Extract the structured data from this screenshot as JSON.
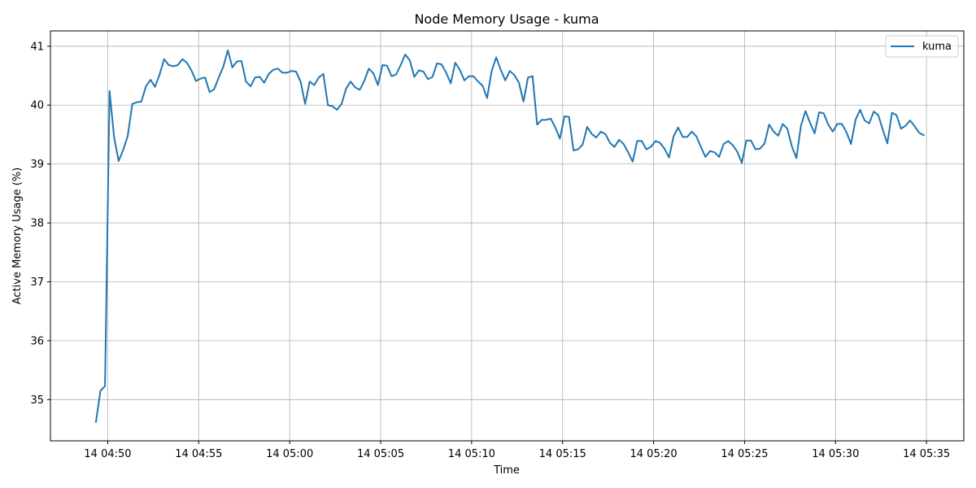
{
  "chart_data": {
    "type": "line",
    "title": "Node Memory Usage - kuma",
    "xlabel": "Time",
    "ylabel": "Active Memory Usage (%)",
    "x_tick_labels": [
      "14 04:50",
      "14 04:55",
      "14 05:00",
      "14 05:05",
      "14 05:10",
      "14 05:15",
      "14 05:20",
      "14 05:25",
      "14 05:30",
      "14 05:35"
    ],
    "x_tick_minutes": [
      50,
      55,
      60,
      65,
      70,
      75,
      80,
      85,
      90,
      95
    ],
    "y_ticks": [
      35,
      36,
      37,
      38,
      39,
      40,
      41
    ],
    "xlim": [
      46.85,
      97.05
    ],
    "ylim": [
      34.3,
      41.26
    ],
    "grid": true,
    "legend_position": "top-right",
    "series": [
      {
        "name": "kuma",
        "color": "#1f77b4",
        "x": [
          49.35,
          49.6,
          49.85,
          50.1,
          50.35,
          50.6,
          50.85,
          51.1,
          51.35,
          51.6,
          51.85,
          52.1,
          52.35,
          52.6,
          52.85,
          53.1,
          53.35,
          53.6,
          53.85,
          54.1,
          54.35,
          54.6,
          54.85,
          55.1,
          55.35,
          55.6,
          55.85,
          56.1,
          56.35,
          56.6,
          56.85,
          57.1,
          57.35,
          57.6,
          57.85,
          58.1,
          58.35,
          58.6,
          58.85,
          59.1,
          59.35,
          59.6,
          59.85,
          60.1,
          60.35,
          60.6,
          60.85,
          61.1,
          61.35,
          61.6,
          61.85,
          62.1,
          62.35,
          62.6,
          62.85,
          63.1,
          63.35,
          63.6,
          63.85,
          64.1,
          64.35,
          64.6,
          64.85,
          65.1,
          65.35,
          65.6,
          65.85,
          66.1,
          66.35,
          66.6,
          66.85,
          67.1,
          67.35,
          67.6,
          67.85,
          68.1,
          68.35,
          68.6,
          68.85,
          69.1,
          69.35,
          69.6,
          69.85,
          70.1,
          70.35,
          70.6,
          70.85,
          71.1,
          71.35,
          71.6,
          71.85,
          72.1,
          72.35,
          72.6,
          72.85,
          73.1,
          73.35,
          73.6,
          73.85,
          74.1,
          74.35,
          74.6,
          74.85,
          75.1,
          75.35,
          75.6,
          75.85,
          76.1,
          76.35,
          76.6,
          76.85,
          77.1,
          77.35,
          77.6,
          77.85,
          78.1,
          78.35,
          78.6,
          78.85,
          79.1,
          79.35,
          79.6,
          79.85,
          80.1,
          80.35,
          80.6,
          80.85,
          81.1,
          81.35,
          81.6,
          81.85,
          82.1,
          82.35,
          82.6,
          82.85,
          83.1,
          83.35,
          83.6,
          83.85,
          84.1,
          84.35,
          84.6,
          84.85,
          85.1,
          85.35,
          85.6,
          85.85,
          86.1,
          86.35,
          86.6,
          86.85,
          87.1,
          87.35,
          87.6,
          87.85,
          88.1,
          88.35,
          88.6,
          88.85,
          89.1,
          89.35,
          89.6,
          89.85,
          90.1,
          90.35,
          90.6,
          90.85,
          91.1,
          91.35,
          91.6,
          91.85,
          92.1,
          92.35,
          92.6,
          92.85,
          93.1,
          93.35,
          93.6,
          93.85,
          94.1,
          94.35,
          94.6,
          94.85
        ],
        "y": [
          34.62,
          35.15,
          35.23,
          40.24,
          39.45,
          39.05,
          39.24,
          39.48,
          40.02,
          40.05,
          40.06,
          40.32,
          40.43,
          40.31,
          40.52,
          40.78,
          40.68,
          40.66,
          40.68,
          40.78,
          40.72,
          40.59,
          40.41,
          40.45,
          40.47,
          40.22,
          40.27,
          40.47,
          40.65,
          40.93,
          40.64,
          40.74,
          40.75,
          40.4,
          40.32,
          40.47,
          40.48,
          40.38,
          40.53,
          40.6,
          40.62,
          40.55,
          40.55,
          40.58,
          40.57,
          40.4,
          40.02,
          40.4,
          40.34,
          40.47,
          40.53,
          40.0,
          39.98,
          39.92,
          40.02,
          40.28,
          40.4,
          40.3,
          40.26,
          40.41,
          40.62,
          40.54,
          40.34,
          40.68,
          40.67,
          40.49,
          40.52,
          40.68,
          40.86,
          40.76,
          40.48,
          40.59,
          40.57,
          40.44,
          40.48,
          40.71,
          40.69,
          40.55,
          40.37,
          40.72,
          40.6,
          40.42,
          40.49,
          40.49,
          40.4,
          40.33,
          40.12,
          40.58,
          40.81,
          40.6,
          40.42,
          40.58,
          40.51,
          40.38,
          40.06,
          40.47,
          40.49,
          39.67,
          39.75,
          39.75,
          39.77,
          39.62,
          39.43,
          39.81,
          39.8,
          39.23,
          39.25,
          39.33,
          39.63,
          39.51,
          39.45,
          39.55,
          39.51,
          39.36,
          39.29,
          39.41,
          39.34,
          39.2,
          39.04,
          39.39,
          39.39,
          39.25,
          39.29,
          39.39,
          39.36,
          39.26,
          39.11,
          39.47,
          39.62,
          39.46,
          39.46,
          39.55,
          39.47,
          39.29,
          39.12,
          39.22,
          39.2,
          39.12,
          39.34,
          39.39,
          39.32,
          39.21,
          39.02,
          39.4,
          39.4,
          39.25,
          39.26,
          39.35,
          39.67,
          39.55,
          39.48,
          39.68,
          39.6,
          39.3,
          39.1,
          39.65,
          39.9,
          39.7,
          39.52,
          39.88,
          39.86,
          39.67,
          39.55,
          39.68,
          39.68,
          39.54,
          39.34,
          39.75,
          39.92,
          39.74,
          39.69,
          39.89,
          39.83,
          39.58,
          39.35,
          39.87,
          39.83,
          39.6,
          39.65,
          39.74,
          39.64,
          39.53,
          39.49
        ]
      }
    ]
  }
}
